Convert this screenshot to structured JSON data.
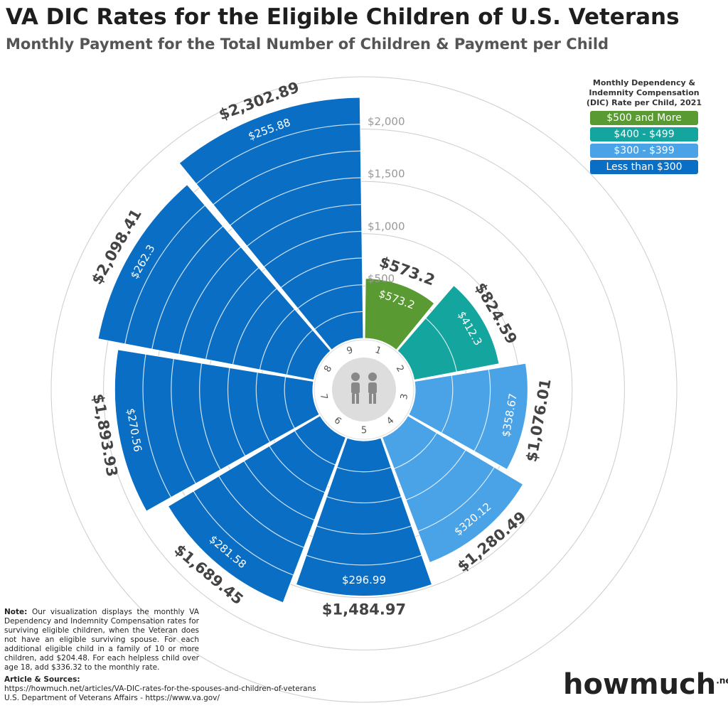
{
  "chart_data": {
    "type": "radial_bar",
    "title": "VA DIC Rates for the Eligible Children of U.S. Veterans",
    "subtitle": "Monthly Payment for the Total Number of Children & Payment per Child",
    "categories": [
      "1",
      "2",
      "3",
      "4",
      "5",
      "6",
      "7",
      "8",
      "9"
    ],
    "values": [
      573.2,
      824.59,
      1076.01,
      1280.49,
      1484.97,
      1689.45,
      1893.93,
      2098.41,
      2302.89
    ],
    "value_labels": [
      "$573.2",
      "$824.59",
      "$1,076.01",
      "$1,280.49",
      "$1,484.97",
      "$1,689.45",
      "$1,893.93",
      "$2,098.41",
      "$2,302.89"
    ],
    "per_child": [
      573.2,
      412.3,
      358.67,
      320.12,
      296.99,
      281.58,
      270.56,
      262.3,
      255.88
    ],
    "per_child_labels": [
      "$573.2",
      "$412.3",
      "$358.67",
      "$320.12",
      "$296.99",
      "$281.58",
      "$270.56",
      "$262.3",
      "$255.88"
    ],
    "colors": [
      "#5a9a32",
      "#13a59e",
      "#4aa3e6",
      "#4aa3e6",
      "#0a6fc4",
      "#0a6fc4",
      "#0a6fc4",
      "#0a6fc4",
      "#0a6fc4"
    ],
    "rlim": [
      0,
      2500
    ],
    "rticks": [
      {
        "value": 500,
        "label": "$500"
      },
      {
        "value": 1000,
        "label": "$1,000"
      },
      {
        "value": 1500,
        "label": "$1,500"
      },
      {
        "value": 2000,
        "label": "$2,000"
      }
    ],
    "legend": {
      "title": "Monthly Dependency & Indemnity Compensation (DIC) Rate per Child, 2021",
      "items": [
        {
          "label": "$500 and More",
          "color": "#5a9a32"
        },
        {
          "label": "$400 - $499",
          "color": "#13a59e"
        },
        {
          "label": "$300 - $399",
          "color": "#4aa3e6"
        },
        {
          "label": "Less than $300",
          "color": "#0a6fc4"
        }
      ]
    }
  },
  "note": {
    "label": "Note:",
    "text": "Our visualization displays the monthly VA Dependency and Indemnity Compensation rates for surviving eligible children, when the Veteran does not have an eligible surviving spouse. For each additional eligible child in a family of 10 or more children, add $204.48. For each helpless child over age 18, add $336.32 to the monthly rate."
  },
  "sources": {
    "label": "Article & Sources:",
    "lines": [
      "https://howmuch.net/articles/VA-DIC-rates-for-the-spouses-and-children-of-veterans",
      "U.S. Department of Veterans Affairs - https://www.va.gov/"
    ]
  },
  "logo": {
    "text": "howmuch",
    "suffix": ".net"
  }
}
